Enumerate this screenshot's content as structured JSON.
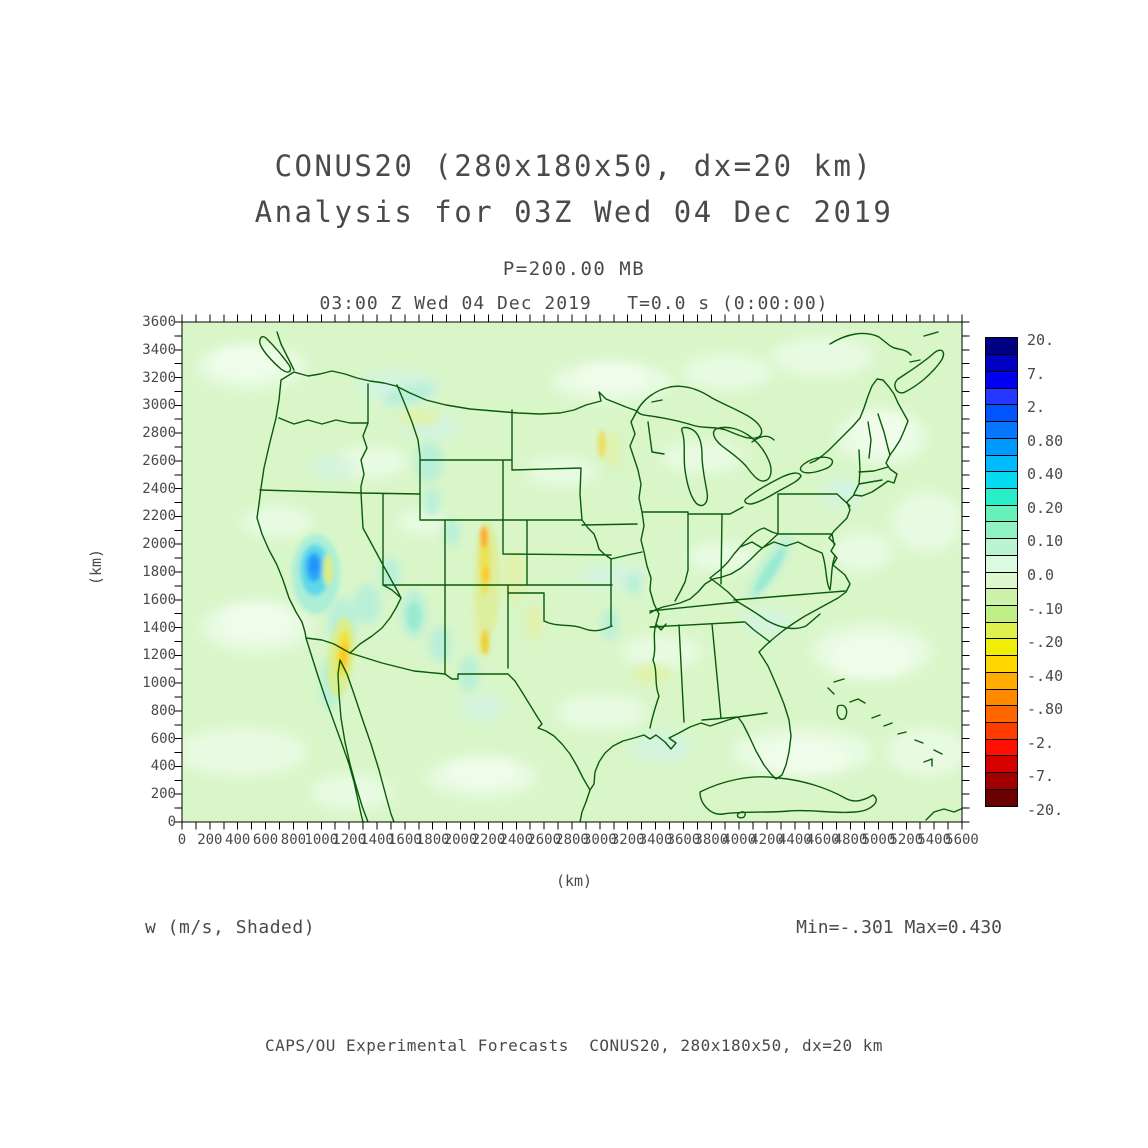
{
  "titles": {
    "line1": "CONUS20 (280x180x50, dx=20 km)",
    "line2": "Analysis for 03Z Wed 04 Dec 2019",
    "pressure": "P=200.00 MB",
    "time_header": "03:00 Z Wed 04 Dec 2019   T=0.0 s (0:00:00)"
  },
  "axes": {
    "x": {
      "label": "(km)",
      "min": 0,
      "max": 5600,
      "tick_step": 200,
      "minor_step": 100,
      "ticks": [
        "0",
        "200",
        "400",
        "600",
        "800",
        "1000",
        "1200",
        "1400",
        "1600",
        "1800",
        "2000",
        "2200",
        "2400",
        "2600",
        "2800",
        "3000",
        "3200",
        "3400",
        "3600",
        "3800",
        "4000",
        "4200",
        "4400",
        "4600",
        "4800",
        "5000",
        "5200",
        "5400",
        "5600"
      ]
    },
    "y": {
      "label": "(km)",
      "min": 0,
      "max": 3600,
      "tick_step": 200,
      "minor_step": 100,
      "ticks": [
        "3600",
        "3400",
        "3200",
        "3000",
        "2800",
        "2600",
        "2400",
        "2200",
        "2000",
        "1800",
        "1600",
        "1400",
        "1200",
        "1000",
        "800",
        "600",
        "400",
        "200",
        "0"
      ]
    }
  },
  "colorbar": {
    "labels": [
      "20.",
      "7.",
      "2.",
      "0.80",
      "0.40",
      "0.20",
      "0.10",
      "0.0",
      "-.10",
      "-.20",
      "-.40",
      "-.80",
      "-2.",
      "-7.",
      "-20."
    ],
    "cells": [
      "#000082",
      "#0000C4",
      "#0000F2",
      "#2438FF",
      "#0055FF",
      "#0677FF",
      "#0099FF",
      "#00BAFF",
      "#06DCF0",
      "#2AEEC9",
      "#66F0BA",
      "#90F1C3",
      "#BBF4D0",
      "#DCF9E2",
      "#DFF8D0",
      "#CDF2AA",
      "#C0EE84",
      "#DFF04E",
      "#F0EE04",
      "#FFD600",
      "#FFAC00",
      "#FF8A00",
      "#FF6600",
      "#FF3C00",
      "#FF1000",
      "#D60000",
      "#A20000",
      "#6A0000"
    ]
  },
  "annotations": {
    "field": "w (m/s, Shaded)",
    "stats": "Min=-.301 Max=0.430",
    "footer": "CAPS/OU Experimental Forecasts  CONUS20, 280x180x50, dx=20 km"
  },
  "map": {
    "base_color": "#D9F6C9",
    "border_color": "#0B5A0B",
    "frame_color": "#000000"
  },
  "chart_data": {
    "type": "heatmap",
    "title": "CONUS20 (280x180x50, dx=20 km) Analysis for 03Z Wed 04 Dec 2019",
    "variable": "w (m/s, Shaded)",
    "level": "P=200.00 MB",
    "valid_time": "03:00 Z Wed 04 Dec 2019",
    "forecast_offset": "T=0.0 s (0:00:00)",
    "xlabel": "(km)",
    "ylabel": "(km)",
    "xlim": [
      0,
      5600
    ],
    "ylim": [
      0,
      3600
    ],
    "grid_spec": "280x180x50, dx=20 km",
    "min": -0.301,
    "max": 0.43,
    "contour_levels": [
      -20,
      -7,
      -2,
      -0.8,
      -0.4,
      -0.2,
      -0.1,
      0,
      0.1,
      0.2,
      0.4,
      0.8,
      2,
      7,
      20
    ],
    "legend_position": "right",
    "basemap": "CONUS with state borders, N Mexico, S Canada, Cuba and Bahamas",
    "features": [
      {
        "region": "Sierra Nevada (CA/NV border)",
        "value": "updraft max ~ +0.43 m/s",
        "appearance": "blue/cyan blob"
      },
      {
        "region": "S California / N Baja border",
        "value": "downdraft ~ -0.3 m/s",
        "appearance": "yellow/gold streak"
      },
      {
        "region": "Colorado-New Mexico Rockies",
        "value": "downdraft ~ -0.2 to -0.3 m/s",
        "appearance": "yellow/orange band"
      },
      {
        "region": "Intermountain West and Appalachians",
        "value": "weak vertical motion +/-0.1-0.2 m/s",
        "appearance": "pale teal streaks"
      },
      {
        "region": "Most of domain",
        "value": "near-zero w (-0.1 to +0.1 m/s)",
        "appearance": "pale green shading"
      }
    ]
  }
}
